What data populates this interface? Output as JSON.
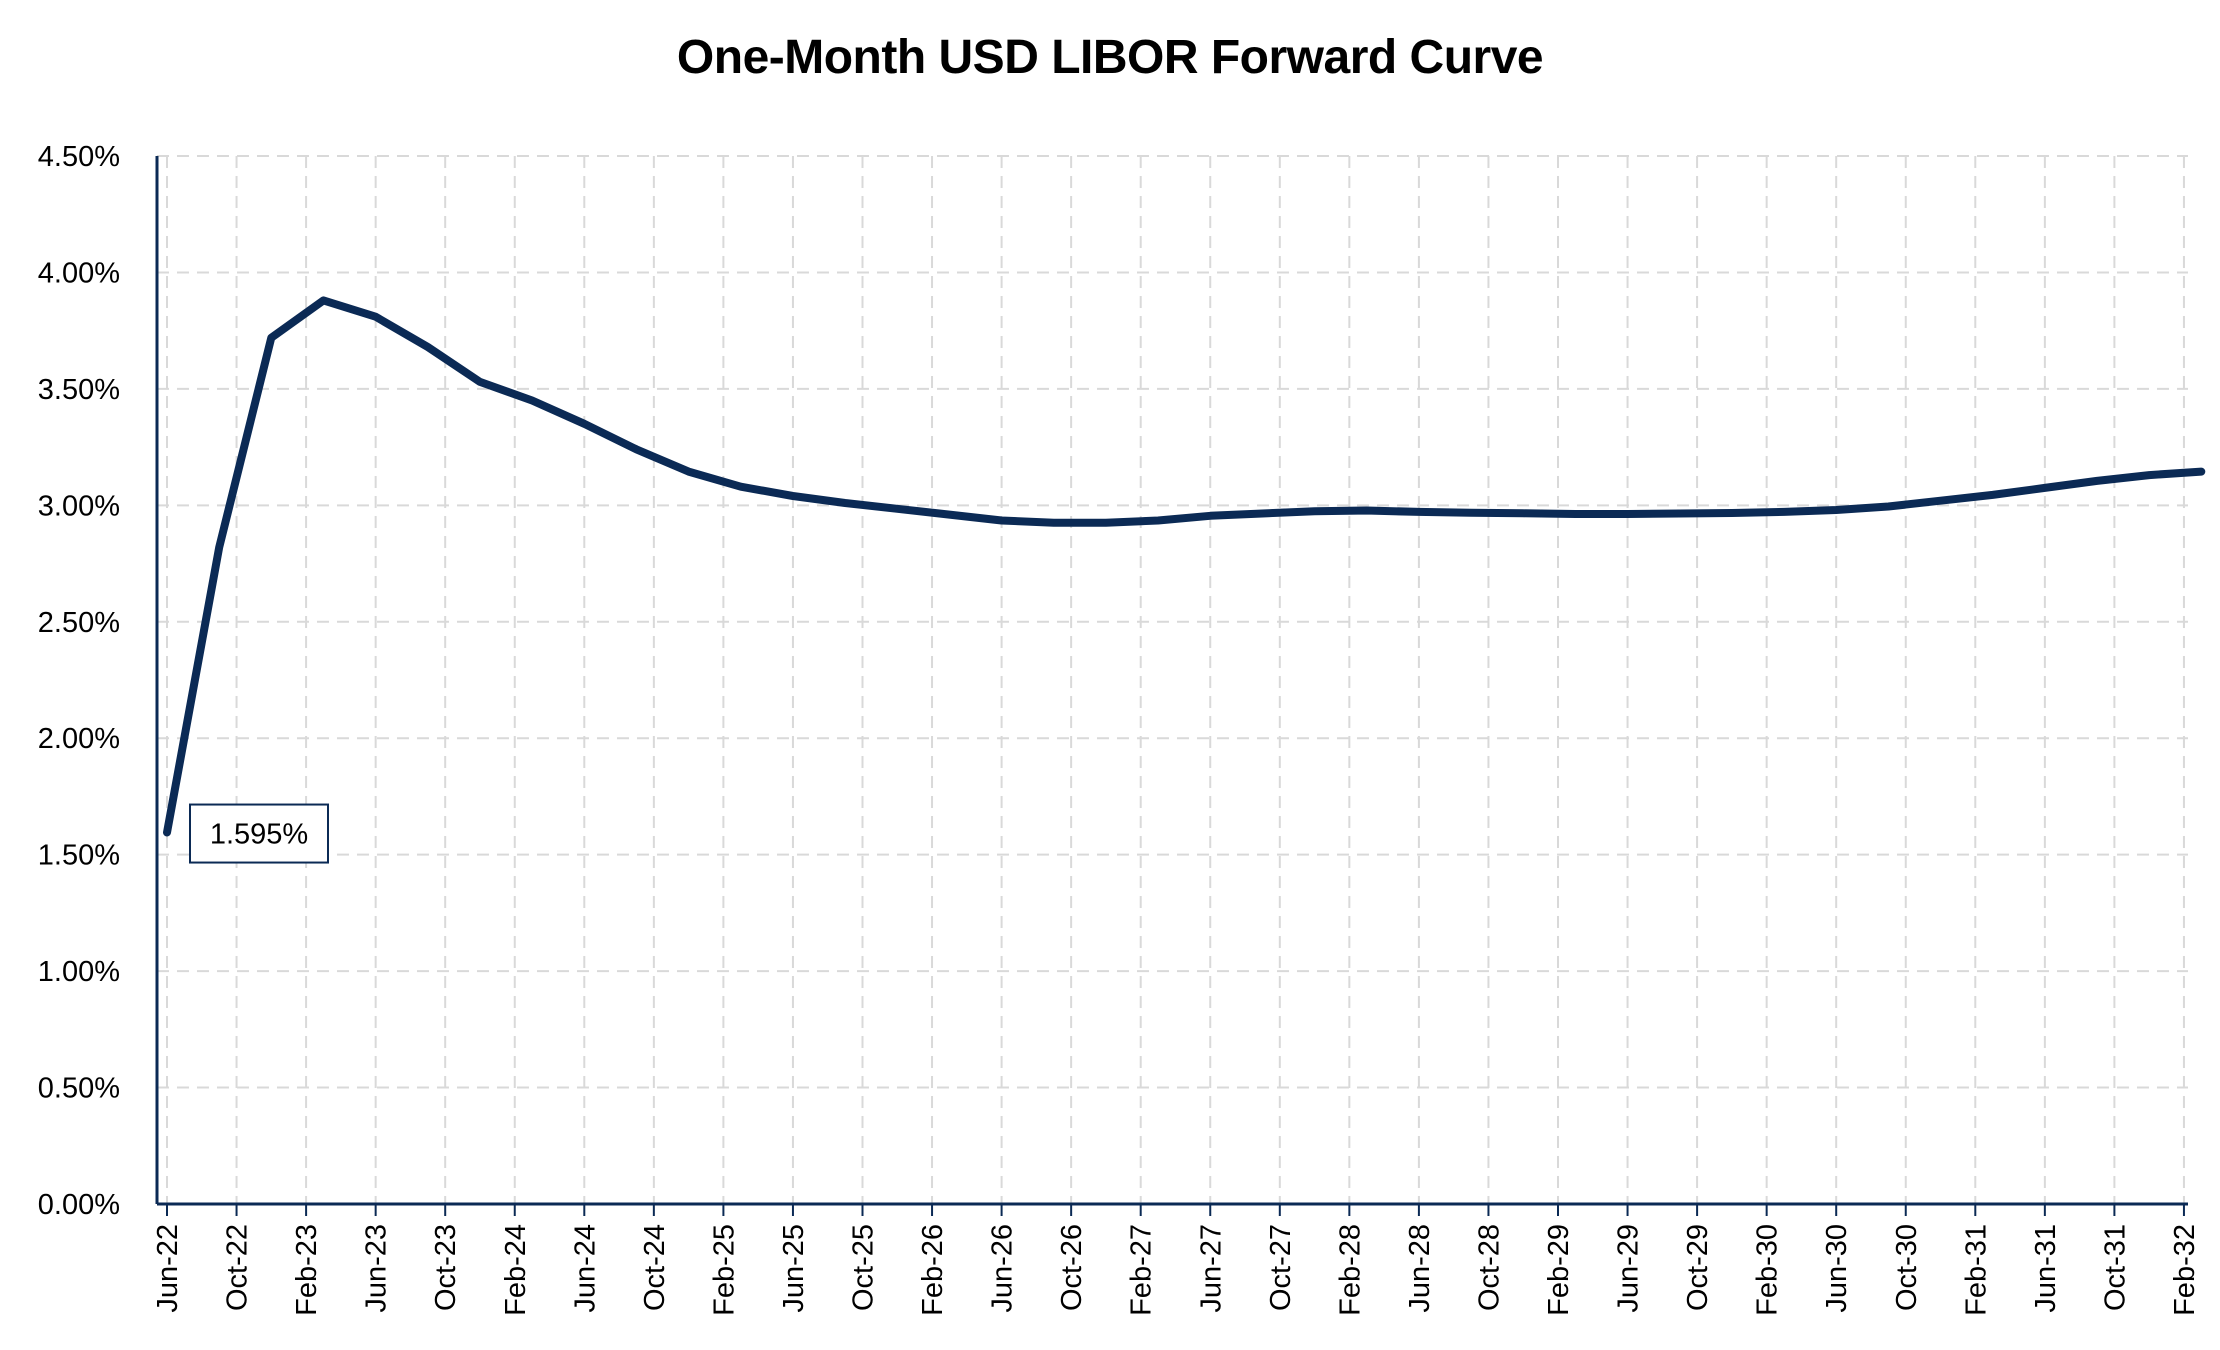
{
  "chart_data": {
    "type": "line",
    "title": "One-Month USD LIBOR Forward Curve",
    "xlabel": "",
    "ylabel": "",
    "ylim": [
      0,
      4.5
    ],
    "grid": true,
    "legend": "none",
    "y_ticks": [
      "0.00%",
      "0.50%",
      "1.00%",
      "1.50%",
      "2.00%",
      "2.50%",
      "3.00%",
      "3.50%",
      "4.00%",
      "4.50%"
    ],
    "x_ticks": [
      "Jun-22",
      "Oct-22",
      "Feb-23",
      "Jun-23",
      "Oct-23",
      "Feb-24",
      "Jun-24",
      "Oct-24",
      "Feb-25",
      "Jun-25",
      "Oct-25",
      "Feb-26",
      "Jun-26",
      "Oct-26",
      "Feb-27",
      "Jun-27",
      "Oct-27",
      "Feb-28",
      "Jun-28",
      "Oct-28",
      "Feb-29",
      "Jun-29",
      "Oct-29",
      "Feb-30",
      "Jun-30",
      "Oct-30",
      "Feb-31",
      "Jun-31",
      "Oct-31",
      "Feb-32"
    ],
    "series": [
      {
        "x": [
          "Jun-22",
          "Sep-22",
          "Dec-22",
          "Mar-23",
          "Jun-23",
          "Sep-23",
          "Dec-23",
          "Mar-24",
          "Jun-24",
          "Sep-24",
          "Dec-24",
          "Mar-25",
          "Jun-25",
          "Sep-25",
          "Dec-25",
          "Mar-26",
          "Jun-26",
          "Sep-26",
          "Dec-26",
          "Mar-27",
          "Jun-27",
          "Sep-27",
          "Dec-27",
          "Mar-28",
          "Jun-28",
          "Sep-28",
          "Dec-28",
          "Mar-29",
          "Jun-29",
          "Sep-29",
          "Dec-29",
          "Mar-30",
          "Jun-30",
          "Sep-30",
          "Dec-30",
          "Mar-31",
          "Jun-31",
          "Sep-31",
          "Dec-31",
          "Mar-32"
        ],
        "values": [
          1.595,
          2.82,
          3.72,
          3.88,
          3.81,
          3.68,
          3.53,
          3.45,
          3.35,
          3.24,
          3.145,
          3.08,
          3.04,
          3.01,
          2.985,
          2.96,
          2.935,
          2.925,
          2.925,
          2.935,
          2.955,
          2.965,
          2.975,
          2.978,
          2.972,
          2.968,
          2.966,
          2.963,
          2.963,
          2.965,
          2.967,
          2.972,
          2.98,
          2.995,
          3.02,
          3.045,
          3.075,
          3.105,
          3.13,
          3.145
        ]
      }
    ],
    "color": "#0b2a55",
    "data_labels": [
      {
        "index": 0,
        "text": "1.595%"
      }
    ]
  }
}
